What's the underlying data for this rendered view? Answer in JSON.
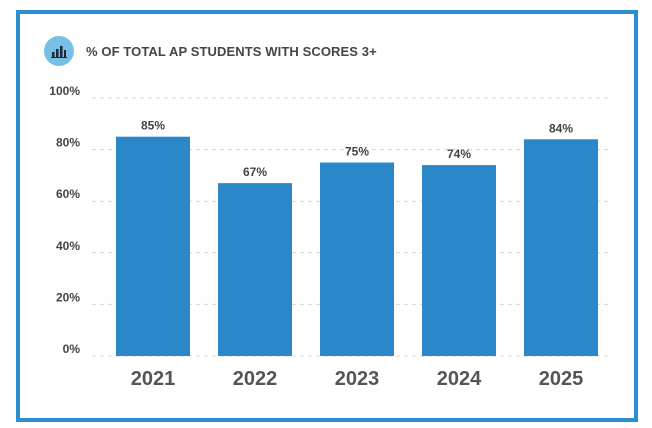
{
  "header": {
    "title": "% OF TOTAL AP STUDENTS WITH SCORES 3+",
    "icon": "bar-chart-icon"
  },
  "colors": {
    "frame": "#2b8fd0",
    "bar": "#2a88c8",
    "icon_bg": "#78bfe6"
  },
  "chart_data": {
    "type": "bar",
    "title": "% OF TOTAL AP STUDENTS WITH SCORES 3+",
    "categories": [
      "2021",
      "2022",
      "2023",
      "2024",
      "2025"
    ],
    "values": [
      85,
      67,
      75,
      74,
      84
    ],
    "data_labels": [
      "85%",
      "67%",
      "75%",
      "74%",
      "84%"
    ],
    "yticks": [
      0,
      20,
      40,
      60,
      80,
      100
    ],
    "ytick_labels": [
      "0%",
      "20%",
      "40%",
      "60%",
      "80%",
      "100%"
    ],
    "ylim": [
      0,
      100
    ],
    "xlabel": "",
    "ylabel": "",
    "grid": true
  }
}
